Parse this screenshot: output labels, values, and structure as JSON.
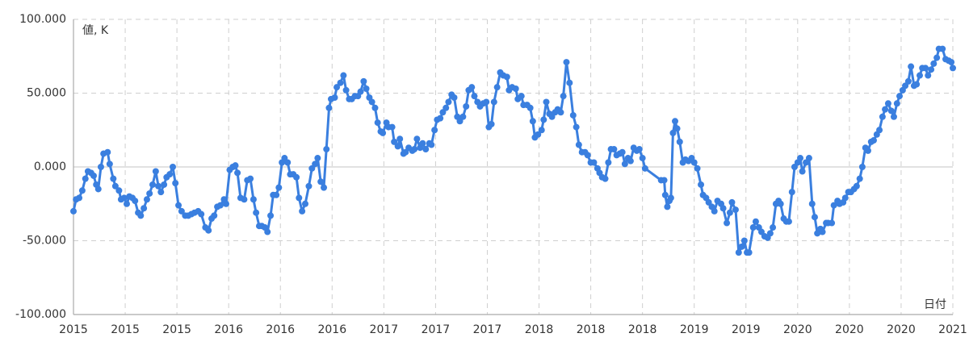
{
  "chart_data": {
    "type": "line",
    "y_label": "値, K",
    "x_label": "日付",
    "xlim": [
      0,
      17
    ],
    "xticks": [
      {
        "value": 0,
        "label": "2015"
      },
      {
        "value": 1,
        "label": "2015"
      },
      {
        "value": 2,
        "label": "2015"
      },
      {
        "value": 3,
        "label": "2016"
      },
      {
        "value": 4,
        "label": "2016"
      },
      {
        "value": 5,
        "label": "2016"
      },
      {
        "value": 6,
        "label": "2017"
      },
      {
        "value": 7,
        "label": "2017"
      },
      {
        "value": 8,
        "label": "2017"
      },
      {
        "value": 9,
        "label": "2018"
      },
      {
        "value": 10,
        "label": "2018"
      },
      {
        "value": 11,
        "label": "2018"
      },
      {
        "value": 12,
        "label": "2019"
      },
      {
        "value": 13,
        "label": "2019"
      },
      {
        "value": 14,
        "label": "2020"
      },
      {
        "value": 15,
        "label": "2020"
      },
      {
        "value": 16,
        "label": "2020"
      },
      {
        "value": 17,
        "label": "2021"
      }
    ],
    "ylim": [
      -100,
      100
    ],
    "yticks": [
      {
        "value": 100,
        "label": "100.000"
      },
      {
        "value": 50,
        "label": "50.000"
      },
      {
        "value": 0,
        "label": "0.000"
      },
      {
        "value": -50,
        "label": "-50.000"
      },
      {
        "value": -100,
        "label": "-100.000"
      }
    ],
    "grid": true,
    "series": [
      {
        "color": "#3a7fdf",
        "x": [
          0,
          0.05,
          0.11,
          0.17,
          0.23,
          0.28,
          0.34,
          0.39,
          0.44,
          0.48,
          0.53,
          0.58,
          0.66,
          0.7,
          0.77,
          0.81,
          0.88,
          0.92,
          0.98,
          1.03,
          1.08,
          1.14,
          1.19,
          1.25,
          1.3,
          1.36,
          1.42,
          1.47,
          1.53,
          1.59,
          1.64,
          1.69,
          1.75,
          1.8,
          1.86,
          1.92,
          1.97,
          2.03,
          2.09,
          2.16,
          2.22,
          2.28,
          2.34,
          2.41,
          2.47,
          2.55,
          2.61,
          2.67,
          2.72,
          2.78,
          2.84,
          2.91,
          2.95,
          3.02,
          3.08,
          3.13,
          3.17,
          3.23,
          3.3,
          3.36,
          3.42,
          3.48,
          3.53,
          3.59,
          3.64,
          3.7,
          3.75,
          3.81,
          3.86,
          3.92,
          3.97,
          4.03,
          4.08,
          4.14,
          4.19,
          4.25,
          4.31,
          4.36,
          4.42,
          4.48,
          4.55,
          4.61,
          4.67,
          4.72,
          4.78,
          4.84,
          4.89,
          4.94,
          4.98,
          5.05,
          5.09,
          5.16,
          5.22,
          5.27,
          5.33,
          5.38,
          5.44,
          5.5,
          5.55,
          5.61,
          5.66,
          5.72,
          5.77,
          5.83,
          5.88,
          5.94,
          5.98,
          6.05,
          6.09,
          6.16,
          6.2,
          6.27,
          6.31,
          6.38,
          6.42,
          6.48,
          6.55,
          6.59,
          6.64,
          6.7,
          6.75,
          6.81,
          6.88,
          6.92,
          6.98,
          7.03,
          7.09,
          7.14,
          7.2,
          7.25,
          7.31,
          7.36,
          7.42,
          7.47,
          7.53,
          7.59,
          7.64,
          7.7,
          7.75,
          7.81,
          7.86,
          7.92,
          7.98,
          8.03,
          8.08,
          8.13,
          8.19,
          8.25,
          8.31,
          8.38,
          8.42,
          8.48,
          8.55,
          8.59,
          8.66,
          8.7,
          8.77,
          8.83,
          8.88,
          8.92,
          8.98,
          9.05,
          9.09,
          9.14,
          9.2,
          9.25,
          9.31,
          9.36,
          9.42,
          9.47,
          9.53,
          9.59,
          9.66,
          9.72,
          9.77,
          9.83,
          9.89,
          9.94,
          10.0,
          10.06,
          10.13,
          10.17,
          10.22,
          10.28,
          10.34,
          10.39,
          10.45,
          10.5,
          10.56,
          10.61,
          10.66,
          10.72,
          10.77,
          10.83,
          10.89,
          10.94,
          11.0,
          11.05,
          11.36,
          11.42,
          11.44,
          11.48,
          11.52,
          11.55,
          11.59,
          11.63,
          11.67,
          11.72,
          11.78,
          11.83,
          11.89,
          11.95,
          12.0,
          12.06,
          12.13,
          12.17,
          12.23,
          12.28,
          12.34,
          12.39,
          12.45,
          12.52,
          12.56,
          12.63,
          12.69,
          12.73,
          12.8,
          12.86,
          12.92,
          12.97,
          13.02,
          13.06,
          13.14,
          13.19,
          13.25,
          13.3,
          13.36,
          13.42,
          13.47,
          13.52,
          13.58,
          13.63,
          13.67,
          13.73,
          13.78,
          13.83,
          13.89,
          13.94,
          14.0,
          14.05,
          14.09,
          14.16,
          14.22,
          14.28,
          14.33,
          14.38,
          14.44,
          14.48,
          14.55,
          14.59,
          14.66,
          14.7,
          14.77,
          14.81,
          14.88,
          14.92,
          14.98,
          15.03,
          15.09,
          15.14,
          15.2,
          15.25,
          15.31,
          15.36,
          15.42,
          15.47,
          15.53,
          15.58,
          15.64,
          15.69,
          15.75,
          15.81,
          15.86,
          15.92,
          15.97,
          16.03,
          16.08,
          16.14,
          16.19,
          16.25,
          16.3,
          16.36,
          16.41,
          16.47,
          16.52,
          16.58,
          16.63,
          16.69,
          16.73,
          16.8,
          16.86,
          16.92,
          16.97,
          17
        ],
        "values": [
          -30,
          -22,
          -21,
          -16,
          -8,
          -3,
          -4,
          -6,
          -12,
          -15,
          0,
          9,
          10,
          2,
          -8,
          -13,
          -16,
          -22,
          -21,
          -25,
          -20,
          -21,
          -23,
          -31,
          -33,
          -28,
          -22,
          -18,
          -12,
          -3,
          -13,
          -17,
          -12,
          -7,
          -5,
          0,
          -11,
          -26,
          -30,
          -33,
          -33,
          -32,
          -31,
          -30,
          -32,
          -41,
          -43,
          -35,
          -33,
          -27,
          -26,
          -22,
          -25,
          -2,
          0,
          1,
          -4,
          -21,
          -22,
          -9,
          -8,
          -22,
          -31,
          -40,
          -40,
          -41,
          -44,
          -33,
          -19,
          -19,
          -14,
          3,
          6,
          3,
          -5,
          -5,
          -7,
          -21,
          -30,
          -25,
          -13,
          -1,
          2,
          6,
          -10,
          -14,
          12,
          40,
          46,
          47,
          54,
          57,
          62,
          52,
          46,
          46,
          48,
          48,
          51,
          58,
          53,
          47,
          44,
          40,
          30,
          24,
          23,
          30,
          27,
          27,
          17,
          14,
          19,
          9,
          10,
          13,
          11,
          12,
          19,
          13,
          16,
          12,
          16,
          15,
          25,
          32,
          33,
          37,
          40,
          44,
          49,
          47,
          34,
          31,
          34,
          41,
          52,
          54,
          48,
          44,
          41,
          43,
          44,
          27,
          29,
          44,
          54,
          64,
          62,
          61,
          52,
          54,
          53,
          46,
          48,
          42,
          42,
          40,
          31,
          20,
          22,
          25,
          32,
          44,
          36,
          34,
          37,
          39,
          37,
          48,
          71,
          57,
          35,
          27,
          15,
          10,
          10,
          8,
          3,
          3,
          -1,
          -4,
          -7,
          -8,
          3,
          12,
          12,
          8,
          9,
          10,
          2,
          6,
          4,
          13,
          11,
          12,
          6,
          -1,
          -9,
          -9,
          -19,
          -27,
          -23,
          -21,
          23,
          31,
          26,
          17,
          3,
          5,
          4,
          6,
          3,
          -1,
          -12,
          -19,
          -21,
          -24,
          -27,
          -30,
          -23,
          -25,
          -28,
          -38,
          -31,
          -24,
          -29,
          -58,
          -54,
          -50,
          -58,
          -58,
          -41,
          -37,
          -41,
          -44,
          -47,
          -48,
          -45,
          -41,
          -25,
          -23,
          -25,
          -35,
          -37,
          -37,
          -17,
          0,
          3,
          6,
          -3,
          3,
          6,
          -25,
          -34,
          -45,
          -42,
          -44,
          -38,
          -38,
          -38,
          -26,
          -23,
          -25,
          -24,
          -21,
          -17,
          -17,
          -15,
          -13,
          -8,
          0,
          13,
          11,
          17,
          18,
          22,
          25,
          34,
          39,
          43,
          38,
          34,
          43,
          48,
          52,
          55,
          58,
          68,
          55,
          56,
          62,
          67,
          67,
          62,
          66,
          70,
          74,
          80,
          80,
          73,
          72,
          71,
          67
        ]
      }
    ]
  }
}
